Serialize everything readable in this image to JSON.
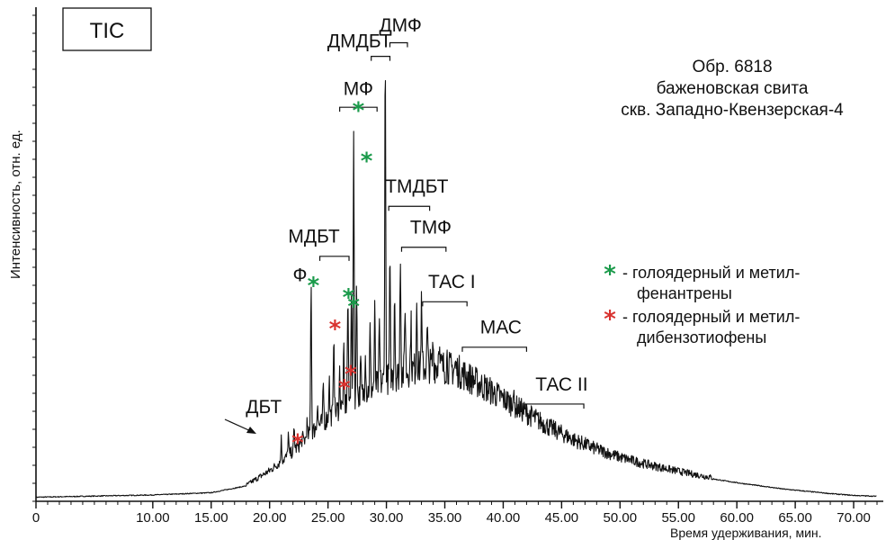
{
  "chart_data": {
    "type": "line",
    "tag": "TIC",
    "ylabel": "Интенсивность, отн. ед.",
    "xlabel": "Время удерживания, мин.",
    "xlim": [
      0,
      72
    ],
    "ylim": [
      0,
      100
    ],
    "x_ticks": [
      "0",
      "10.00",
      "15.00",
      "20.00",
      "25.00",
      "30.00",
      "35.00",
      "40.00",
      "45.00",
      "50.00",
      "55.00",
      "60.00",
      "65.00",
      "70.00"
    ],
    "x_tick_values": [
      0,
      10,
      15,
      20,
      25,
      30,
      35,
      40,
      45,
      50,
      55,
      60,
      65,
      70
    ],
    "sample_info": [
      "Обр. 6818",
      "баженовская свита",
      "скв. Западно-Квензерская-4"
    ],
    "baseline": [
      [
        0,
        0.5
      ],
      [
        10,
        1
      ],
      [
        15,
        1.5
      ],
      [
        18,
        3
      ],
      [
        20,
        6
      ],
      [
        22,
        10
      ],
      [
        24,
        15
      ],
      [
        26,
        19
      ],
      [
        28,
        22
      ],
      [
        30,
        25
      ],
      [
        32,
        27
      ],
      [
        34,
        28
      ],
      [
        36,
        27
      ],
      [
        38,
        24
      ],
      [
        40,
        21
      ],
      [
        42,
        18
      ],
      [
        44,
        15
      ],
      [
        46,
        12.5
      ],
      [
        48,
        10.5
      ],
      [
        50,
        8.8
      ],
      [
        52,
        7.5
      ],
      [
        54,
        6.4
      ],
      [
        56,
        5.4
      ],
      [
        58,
        4.5
      ],
      [
        60,
        3.7
      ],
      [
        62,
        3
      ],
      [
        64,
        2.3
      ],
      [
        66,
        1.8
      ],
      [
        68,
        1.3
      ],
      [
        70,
        0.9
      ],
      [
        72,
        0.7
      ]
    ],
    "peaks": [
      {
        "x": 21.0,
        "y": 13
      },
      {
        "x": 21.6,
        "y": 14
      },
      {
        "x": 22.1,
        "y": 15
      },
      {
        "x": 22.8,
        "y": 13
      },
      {
        "x": 23.2,
        "y": 16
      },
      {
        "x": 23.55,
        "y": 48
      },
      {
        "x": 24.1,
        "y": 21
      },
      {
        "x": 24.6,
        "y": 24
      },
      {
        "x": 25.1,
        "y": 26
      },
      {
        "x": 25.5,
        "y": 37
      },
      {
        "x": 26.0,
        "y": 27
      },
      {
        "x": 26.35,
        "y": 31
      },
      {
        "x": 26.7,
        "y": 44
      },
      {
        "x": 27.0,
        "y": 46
      },
      {
        "x": 27.2,
        "y": 82
      },
      {
        "x": 27.45,
        "y": 47
      },
      {
        "x": 27.8,
        "y": 29
      },
      {
        "x": 28.2,
        "y": 33
      },
      {
        "x": 28.6,
        "y": 36
      },
      {
        "x": 29.0,
        "y": 40
      },
      {
        "x": 29.4,
        "y": 37
      },
      {
        "x": 29.9,
        "y": 98
      },
      {
        "x": 30.3,
        "y": 50
      },
      {
        "x": 30.7,
        "y": 45
      },
      {
        "x": 31.2,
        "y": 53
      },
      {
        "x": 31.6,
        "y": 42
      },
      {
        "x": 32.1,
        "y": 38
      },
      {
        "x": 32.6,
        "y": 43
      },
      {
        "x": 33.0,
        "y": 41
      },
      {
        "x": 33.5,
        "y": 36
      },
      {
        "x": 34.0,
        "y": 33
      },
      {
        "x": 34.5,
        "y": 35
      },
      {
        "x": 35.2,
        "y": 30
      },
      {
        "x": 35.9,
        "y": 28
      },
      {
        "x": 36.7,
        "y": 26
      },
      {
        "x": 37.5,
        "y": 25
      },
      {
        "x": 38.4,
        "y": 23
      },
      {
        "x": 39.3,
        "y": 21
      },
      {
        "x": 40.2,
        "y": 20
      },
      {
        "x": 40.85,
        "y": 23
      },
      {
        "x": 41.8,
        "y": 18
      },
      {
        "x": 43.0,
        "y": 15
      },
      {
        "x": 44.5,
        "y": 12
      },
      {
        "x": 45.95,
        "y": 11
      },
      {
        "x": 47.5,
        "y": 9.5
      },
      {
        "x": 49.0,
        "y": 8
      }
    ],
    "compound_labels": [
      {
        "text": "ДМДБТ",
        "x": 27.7,
        "y": 99.5,
        "bracket": [
          28.7,
          30.3,
          97.5
        ]
      },
      {
        "text": "ДМФ",
        "x": 31.2,
        "y": 103,
        "bracket": [
          30.3,
          31.8,
          100.5
        ]
      },
      {
        "text": "МФ",
        "x": 27.6,
        "y": 89,
        "bracket": [
          26.0,
          29.2,
          86.3
        ]
      },
      {
        "text": "ТМДБТ",
        "x": 32.6,
        "y": 67.5,
        "bracket": [
          30.2,
          33.7,
          64.5
        ]
      },
      {
        "text": "МДБТ",
        "x": 23.8,
        "y": 56.5,
        "bracket": [
          24.3,
          26.8,
          53.5
        ]
      },
      {
        "text": "ТМФ",
        "x": 33.8,
        "y": 58.5,
        "bracket": [
          31.3,
          35.1,
          55.5
        ]
      },
      {
        "text": "Ф",
        "x": 22.6,
        "y": 48,
        "bracket": null
      },
      {
        "text": "ТАС I",
        "x": 35.6,
        "y": 46.5,
        "bracket": [
          33.1,
          36.9,
          43.5
        ]
      },
      {
        "text": "МАС",
        "x": 39.8,
        "y": 36.5,
        "bracket": [
          36.5,
          42.0,
          33.5
        ]
      },
      {
        "text": "ТАС II",
        "x": 45.0,
        "y": 24,
        "bracket": [
          41.9,
          46.9,
          21
        ]
      },
      {
        "text": "ДБТ",
        "x": 19.5,
        "y": 19,
        "bracket": null
      }
    ],
    "markers": [
      {
        "series": "phenanthrenes",
        "x": 27.6,
        "y": 86
      },
      {
        "series": "phenanthrenes",
        "x": 28.3,
        "y": 75
      },
      {
        "series": "phenanthrenes",
        "x": 23.75,
        "y": 47.5
      },
      {
        "series": "phenanthrenes",
        "x": 26.75,
        "y": 45
      },
      {
        "series": "phenanthrenes",
        "x": 27.2,
        "y": 43
      },
      {
        "series": "dibenzothiophenes",
        "x": 25.6,
        "y": 38
      },
      {
        "series": "dibenzothiophenes",
        "x": 26.95,
        "y": 28
      },
      {
        "series": "dibenzothiophenes",
        "x": 26.4,
        "y": 25
      },
      {
        "series": "dibenzothiophenes",
        "x": 22.4,
        "y": 13
      }
    ],
    "legend": [
      {
        "key": "phenanthrenes",
        "color": "#1a9a4a",
        "lines": [
          "- голоядерный и метил-",
          "фенантрены"
        ]
      },
      {
        "key": "dibenzothiophenes",
        "color": "#d8322f",
        "lines": [
          "- голоядерный и метил-",
          "дибензотиофены"
        ]
      }
    ]
  }
}
